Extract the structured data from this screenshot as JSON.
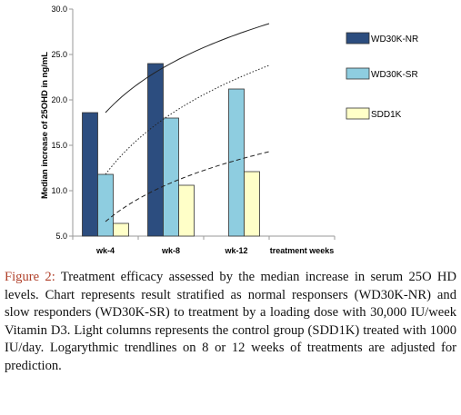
{
  "chart_data": {
    "type": "bar",
    "categories": [
      "wk-4",
      "wk-8",
      "wk-12",
      "treatment weeks"
    ],
    "series": [
      {
        "name": "WD30K-NR",
        "color": "#2c4d7f",
        "values": [
          18.6,
          24.0,
          null,
          null
        ]
      },
      {
        "name": "WD30K-SR",
        "color": "#8ecde0",
        "values": [
          11.8,
          18.0,
          21.2,
          null
        ]
      },
      {
        "name": "SDD1K",
        "color": "#ffffc8",
        "values": [
          6.4,
          10.6,
          12.1,
          null
        ]
      }
    ],
    "ylabel": "Median increase of 25OHD in ng/mL",
    "ylim": [
      5.0,
      30.0
    ],
    "yticks": [
      "5.0",
      "10.0",
      "15.0",
      "20.0",
      "25.0",
      "30.0"
    ],
    "trendlines": [
      {
        "series": "WD30K-NR",
        "type": "logarithmic",
        "style": "solid",
        "x_start": 1,
        "x_end": 3.5,
        "y_start": 18.6,
        "y_end": 28.4
      },
      {
        "series": "WD30K-SR",
        "type": "logarithmic",
        "style": "dotted",
        "x_start": 1,
        "x_end": 3.5,
        "y_start": 11.8,
        "y_end": 23.8
      },
      {
        "series": "SDD1K",
        "type": "logarithmic",
        "style": "dashed",
        "x_start": 1,
        "x_end": 3.5,
        "y_start": 6.6,
        "y_end": 14.3
      }
    ],
    "legend_position": "right",
    "grid": false
  },
  "caption": {
    "label": "Figure 2:",
    "text": " Treatment efficacy assessed by the median increase in serum 25O HD levels. Chart represents result stratified as normal responsers (WD30K-NR) and slow responders (WD30K-SR) to treatment by a loading dose with 30,000 IU/week Vitamin D3. Light columns represents the control group (SDD1K) treated with 1000 IU/day. Logarythmic trendlines on 8 or 12 weeks of treatments are adjusted for prediction."
  }
}
